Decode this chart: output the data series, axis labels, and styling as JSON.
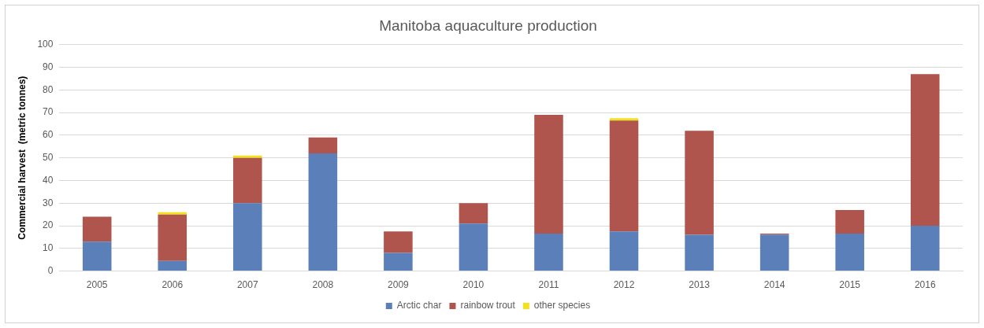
{
  "chart_data": {
    "type": "bar",
    "title": "Manitoba aquaculture production",
    "ylabel": "Commercial harvest  (metric tonnes)",
    "stacked": true,
    "grid": "y",
    "legend": "bottom",
    "categories": [
      "2005",
      "2006",
      "2007",
      "2008",
      "2009",
      "2010",
      "2011",
      "2012",
      "2013",
      "2014",
      "2015",
      "2016"
    ],
    "ylim": [
      0,
      100
    ],
    "yticks": [
      0,
      10,
      20,
      30,
      40,
      50,
      60,
      70,
      80,
      90,
      100
    ],
    "series": [
      {
        "name": "Arctic char",
        "color": "#5b7fb8",
        "values": [
          13,
          4.5,
          30,
          52,
          8,
          21,
          16.5,
          17.5,
          16,
          16,
          16.5,
          20
        ]
      },
      {
        "name": "rainbow trout",
        "color": "#b0554d",
        "values": [
          11,
          20.5,
          20,
          7,
          9.5,
          9,
          52.5,
          49,
          46,
          0.5,
          10.5,
          67
        ]
      },
      {
        "name": "other species",
        "color": "#f2e21c",
        "values": [
          0,
          1,
          1,
          0,
          0,
          0,
          0,
          1,
          0,
          0,
          0,
          0
        ]
      }
    ]
  }
}
